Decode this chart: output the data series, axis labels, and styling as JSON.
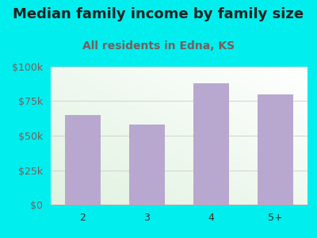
{
  "categories": [
    "2",
    "3",
    "4",
    "5+"
  ],
  "values": [
    65000,
    58000,
    88000,
    80000
  ],
  "bar_color": "#b8a8d0",
  "background_color": "#00EEEE",
  "title": "Median family income by family size",
  "subtitle": "All residents in Edna, KS",
  "title_color": "#222222",
  "subtitle_color": "#7a5c5c",
  "tick_color": "#7a5c5c",
  "xlabel_color": "#333333",
  "ylim": [
    0,
    100000
  ],
  "yticks": [
    0,
    25000,
    50000,
    75000,
    100000
  ],
  "ytick_labels": [
    "$0",
    "$25k",
    "$50k",
    "$75k",
    "$100k"
  ],
  "title_fontsize": 13,
  "subtitle_fontsize": 10,
  "tick_fontsize": 9
}
